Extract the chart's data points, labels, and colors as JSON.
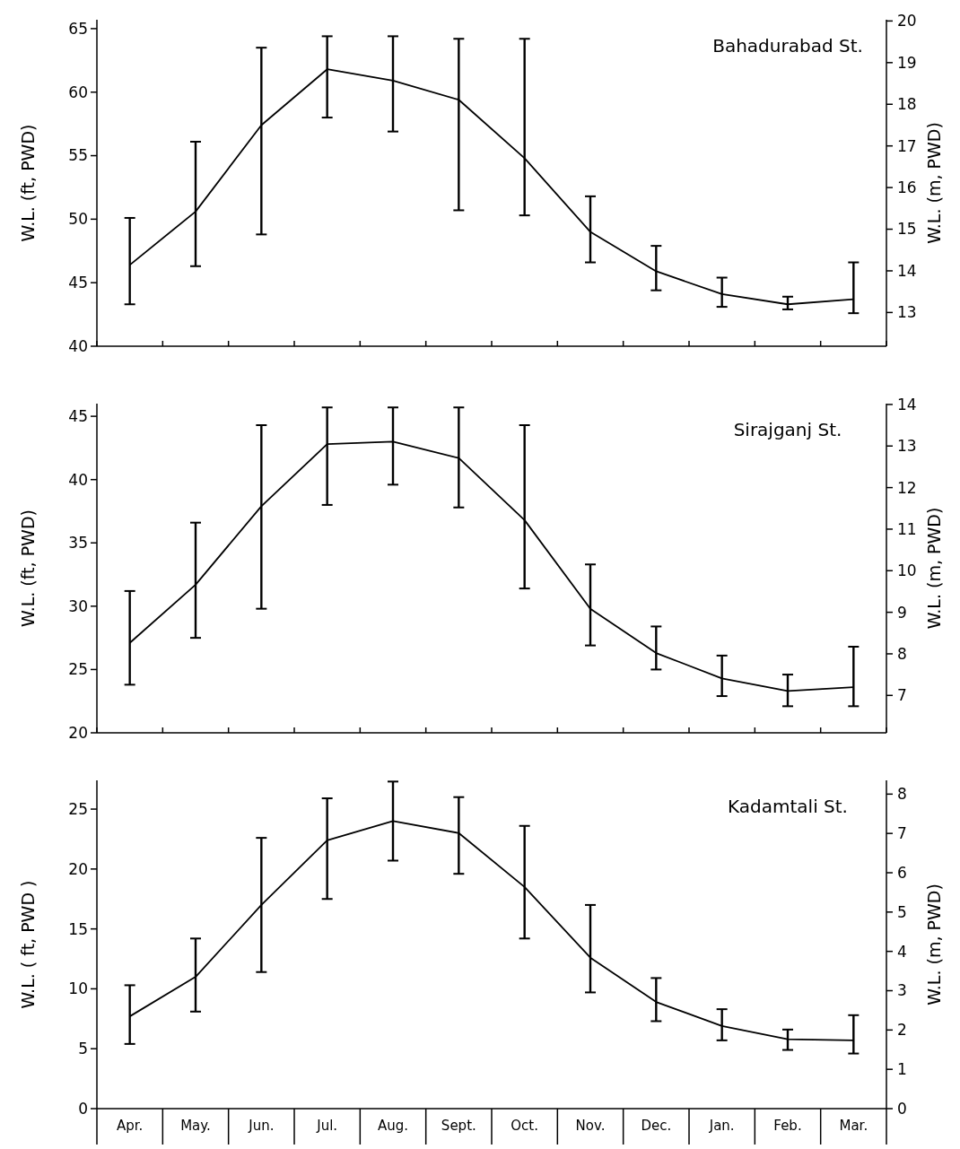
{
  "chart_data": [
    {
      "type": "line",
      "title": "Bahadurabad St.",
      "ylabel": "W.L. (ft, PWD)",
      "y2label": "W.L. (m, PWD)",
      "categories": [
        null,
        null,
        null,
        null,
        null,
        null,
        null,
        null,
        null,
        null,
        null,
        null
      ],
      "tick_labels": "y",
      "marker": "none",
      "line_style": "solid",
      "ylim": [
        40,
        65.7
      ],
      "yticks": [
        40,
        45,
        50,
        55,
        60,
        65
      ],
      "y2lim": [
        12.19,
        20.03
      ],
      "y2ticks": [
        13,
        14,
        15,
        16,
        17,
        18,
        19,
        20
      ],
      "series": [
        {
          "color": "#000000",
          "values": [
            46.4,
            50.6,
            57.4,
            61.8,
            60.9,
            59.4,
            54.8,
            49.0,
            45.9,
            44.1,
            43.3,
            43.7
          ],
          "errors": [
            [
              43.3,
              50.1
            ],
            [
              46.3,
              56.1
            ],
            [
              48.8,
              63.5
            ],
            [
              58.0,
              64.4
            ],
            [
              56.9,
              64.4
            ],
            [
              50.7,
              64.2
            ],
            [
              50.3,
              64.2
            ],
            [
              46.6,
              51.8
            ],
            [
              44.4,
              47.9
            ],
            [
              43.1,
              45.4
            ],
            [
              42.9,
              43.9
            ],
            [
              42.6,
              46.6
            ]
          ]
        }
      ]
    },
    {
      "type": "line",
      "title": "Sirajganj St.",
      "ylabel": "W.L. (ft, PWD)",
      "y2label": "W.L. (m, PWD)",
      "categories": [
        null,
        null,
        null,
        null,
        null,
        null,
        null,
        null,
        null,
        null,
        null,
        null
      ],
      "tick_labels": "y",
      "marker": "none",
      "line_style": "solid",
      "ylim": [
        20,
        46
      ],
      "yticks": [
        20,
        25,
        30,
        35,
        40,
        45
      ],
      "y2lim": [
        6.1,
        14.02
      ],
      "y2ticks": [
        7,
        8,
        9,
        10,
        11,
        12,
        13,
        14
      ],
      "series": [
        {
          "color": "#000000",
          "values": [
            27.1,
            31.7,
            37.9,
            42.8,
            43.0,
            41.7,
            36.8,
            29.8,
            26.3,
            24.3,
            23.3,
            23.6
          ],
          "errors": [
            [
              23.8,
              31.2
            ],
            [
              27.5,
              36.6
            ],
            [
              29.8,
              44.3
            ],
            [
              38.0,
              45.7
            ],
            [
              39.6,
              45.7
            ],
            [
              37.8,
              45.7
            ],
            [
              31.4,
              44.3
            ],
            [
              26.9,
              33.3
            ],
            [
              25.0,
              28.4
            ],
            [
              22.9,
              26.1
            ],
            [
              22.1,
              24.6
            ],
            [
              22.1,
              26.8
            ]
          ]
        }
      ]
    },
    {
      "type": "line",
      "title": "Kadamtali St.",
      "ylabel": "W.L. ( ft, PWD )",
      "y2label": "W.L. (m, PWD)",
      "categories": [
        "Apr.",
        "May.",
        "Jun.",
        "Jul.",
        "Aug.",
        "Sept.",
        "Oct.",
        "Nov.",
        "Dec.",
        "Jan.",
        "Feb.",
        "Mar."
      ],
      "marker": "none",
      "line_style": "solid",
      "ylim": [
        0,
        27.4
      ],
      "yticks": [
        0,
        5,
        10,
        15,
        20,
        25
      ],
      "y2lim": [
        0,
        8.35
      ],
      "y2ticks": [
        0,
        1,
        2,
        3,
        4,
        5,
        6,
        7,
        8
      ],
      "series": [
        {
          "color": "#000000",
          "values": [
            7.7,
            11.0,
            17.0,
            22.4,
            24.0,
            23.0,
            18.5,
            12.6,
            8.9,
            6.9,
            5.8,
            5.7
          ],
          "errors": [
            [
              5.4,
              10.3
            ],
            [
              8.1,
              14.2
            ],
            [
              11.4,
              22.6
            ],
            [
              17.5,
              25.9
            ],
            [
              20.7,
              27.3
            ],
            [
              19.6,
              26.0
            ],
            [
              14.2,
              23.6
            ],
            [
              9.7,
              17.0
            ],
            [
              7.3,
              10.9
            ],
            [
              5.7,
              8.3
            ],
            [
              4.9,
              6.6
            ],
            [
              4.6,
              7.8
            ]
          ]
        }
      ]
    }
  ]
}
